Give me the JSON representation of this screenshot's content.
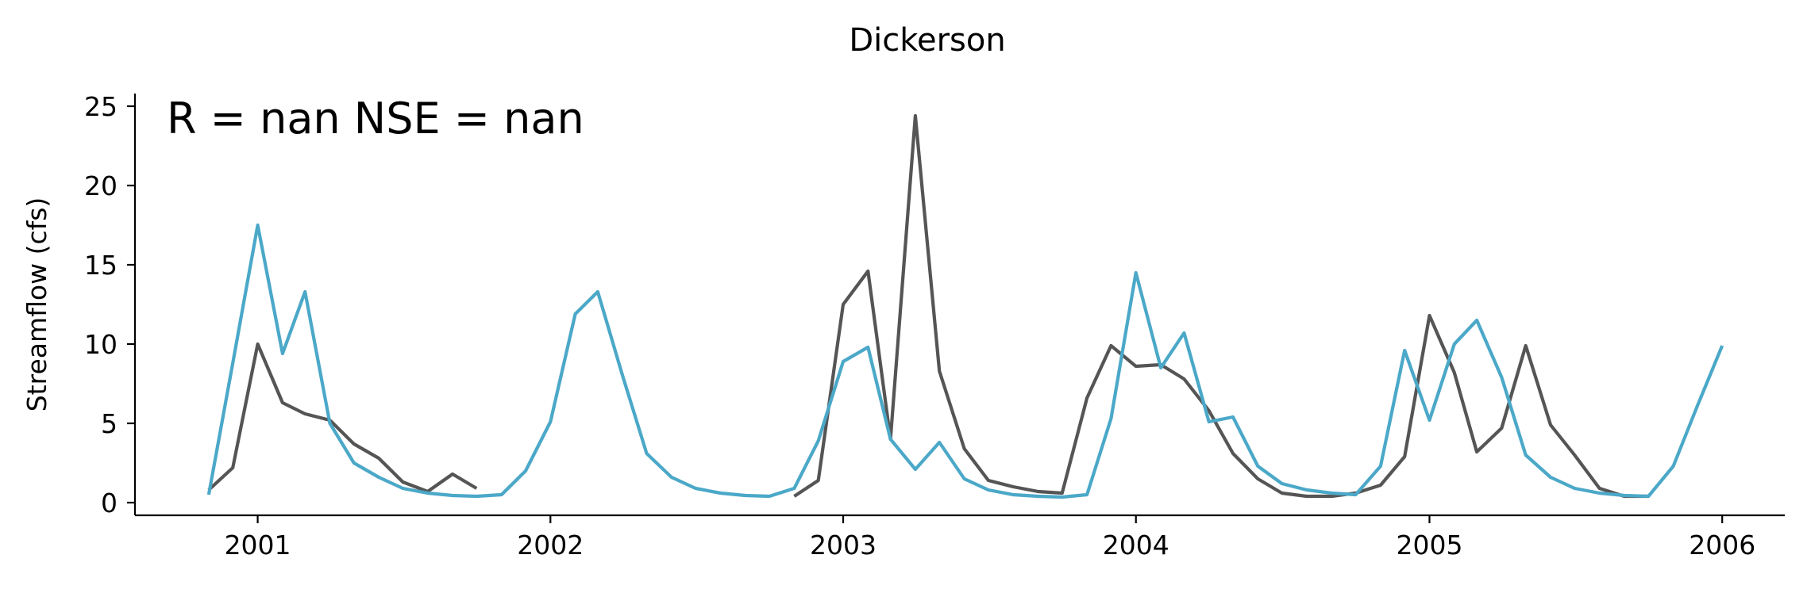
{
  "chart_data": {
    "type": "line",
    "title": "Dickerson",
    "xlabel": "",
    "ylabel": "Streamflow (cfs)",
    "annotation": "R = nan  NSE = nan",
    "xlim": [
      "2000-08-01",
      "2006-03-20"
    ],
    "ylim": [
      -0.8,
      25.8
    ],
    "xticks": [
      {
        "date": "2001-01-01",
        "label": "2001"
      },
      {
        "date": "2002-01-01",
        "label": "2002"
      },
      {
        "date": "2003-01-01",
        "label": "2003"
      },
      {
        "date": "2004-01-01",
        "label": "2004"
      },
      {
        "date": "2005-01-01",
        "label": "2005"
      },
      {
        "date": "2006-01-01",
        "label": "2006"
      }
    ],
    "yticks": [
      0,
      5,
      10,
      15,
      20,
      25
    ],
    "grid": false,
    "legend": "none",
    "series": [
      {
        "color": "#555555",
        "segments": [
          [
            [
              "2000-11-01",
              0.8
            ],
            [
              "2000-12-01",
              2.2
            ],
            [
              "2001-01-01",
              10.0
            ],
            [
              "2001-02-01",
              6.3
            ],
            [
              "2001-03-01",
              5.6
            ],
            [
              "2001-04-01",
              5.2
            ],
            [
              "2001-05-01",
              3.7
            ],
            [
              "2001-06-01",
              2.8
            ],
            [
              "2001-07-01",
              1.3
            ],
            [
              "2001-08-01",
              0.7
            ],
            [
              "2001-09-01",
              1.8
            ],
            [
              "2001-10-01",
              0.9
            ]
          ],
          [
            [
              "2002-11-01",
              0.4
            ],
            [
              "2002-12-01",
              1.4
            ],
            [
              "2003-01-01",
              12.5
            ],
            [
              "2003-02-01",
              14.6
            ],
            [
              "2003-03-01",
              4.0
            ],
            [
              "2003-04-01",
              24.4
            ],
            [
              "2003-05-01",
              8.3
            ],
            [
              "2003-06-01",
              3.4
            ],
            [
              "2003-07-01",
              1.4
            ],
            [
              "2003-08-01",
              1.0
            ],
            [
              "2003-09-01",
              0.7
            ],
            [
              "2003-10-01",
              0.6
            ],
            [
              "2003-11-01",
              6.6
            ],
            [
              "2003-12-01",
              9.9
            ],
            [
              "2004-01-01",
              8.6
            ],
            [
              "2004-02-01",
              8.7
            ],
            [
              "2004-03-01",
              7.8
            ],
            [
              "2004-04-01",
              5.8
            ],
            [
              "2004-05-01",
              3.1
            ],
            [
              "2004-06-01",
              1.5
            ],
            [
              "2004-07-01",
              0.6
            ],
            [
              "2004-08-01",
              0.4
            ],
            [
              "2004-09-01",
              0.4
            ],
            [
              "2004-10-01",
              0.6
            ],
            [
              "2004-11-01",
              1.1
            ],
            [
              "2004-12-01",
              2.9
            ],
            [
              "2005-01-01",
              11.8
            ],
            [
              "2005-02-01",
              8.2
            ],
            [
              "2005-03-01",
              3.2
            ],
            [
              "2005-04-01",
              4.7
            ],
            [
              "2005-05-01",
              9.9
            ],
            [
              "2005-06-01",
              4.9
            ],
            [
              "2005-07-01",
              3.0
            ],
            [
              "2005-08-01",
              0.9
            ],
            [
              "2005-09-01",
              0.4
            ],
            [
              "2005-10-01",
              0.4
            ]
          ]
        ]
      },
      {
        "color": "#4ba8c8",
        "segments": [
          [
            [
              "2000-11-01",
              0.5
            ],
            [
              "2000-12-01",
              8.8
            ],
            [
              "2001-01-01",
              17.5
            ],
            [
              "2001-02-01",
              9.4
            ],
            [
              "2001-03-01",
              13.3
            ],
            [
              "2001-04-01",
              5.0
            ],
            [
              "2001-05-01",
              2.5
            ],
            [
              "2001-06-01",
              1.6
            ],
            [
              "2001-07-01",
              0.9
            ],
            [
              "2001-08-01",
              0.6
            ],
            [
              "2001-09-01",
              0.45
            ],
            [
              "2001-10-01",
              0.4
            ],
            [
              "2001-11-01",
              0.5
            ],
            [
              "2001-12-01",
              2.0
            ],
            [
              "2002-01-01",
              5.1
            ],
            [
              "2002-02-01",
              11.9
            ],
            [
              "2002-03-01",
              13.3
            ],
            [
              "2002-04-01",
              8.0
            ],
            [
              "2002-05-01",
              3.1
            ],
            [
              "2002-06-01",
              1.6
            ],
            [
              "2002-07-01",
              0.9
            ],
            [
              "2002-08-01",
              0.6
            ],
            [
              "2002-09-01",
              0.45
            ],
            [
              "2002-10-01",
              0.4
            ],
            [
              "2002-11-01",
              0.9
            ],
            [
              "2002-12-01",
              3.9
            ],
            [
              "2003-01-01",
              8.9
            ],
            [
              "2003-02-01",
              9.8
            ],
            [
              "2003-03-01",
              4.0
            ],
            [
              "2003-04-01",
              2.1
            ],
            [
              "2003-05-01",
              3.8
            ],
            [
              "2003-06-01",
              1.5
            ],
            [
              "2003-07-01",
              0.8
            ],
            [
              "2003-08-01",
              0.5
            ],
            [
              "2003-09-01",
              0.4
            ],
            [
              "2003-10-01",
              0.35
            ],
            [
              "2003-11-01",
              0.5
            ],
            [
              "2003-12-01",
              5.3
            ],
            [
              "2004-01-01",
              14.5
            ],
            [
              "2004-02-01",
              8.5
            ],
            [
              "2004-03-01",
              10.7
            ],
            [
              "2004-04-01",
              5.1
            ],
            [
              "2004-05-01",
              5.4
            ],
            [
              "2004-06-01",
              2.3
            ],
            [
              "2004-07-01",
              1.2
            ],
            [
              "2004-08-01",
              0.8
            ],
            [
              "2004-09-01",
              0.6
            ],
            [
              "2004-10-01",
              0.5
            ],
            [
              "2004-11-01",
              2.3
            ],
            [
              "2004-12-01",
              9.6
            ],
            [
              "2005-01-01",
              5.2
            ],
            [
              "2005-02-01",
              10.0
            ],
            [
              "2005-03-01",
              11.5
            ],
            [
              "2005-04-01",
              7.9
            ],
            [
              "2005-05-01",
              3.0
            ],
            [
              "2005-06-01",
              1.6
            ],
            [
              "2005-07-01",
              0.9
            ],
            [
              "2005-08-01",
              0.6
            ],
            [
              "2005-09-01",
              0.45
            ],
            [
              "2005-10-01",
              0.4
            ],
            [
              "2005-11-01",
              2.3
            ],
            [
              "2005-12-01",
              6.1
            ],
            [
              "2006-01-01",
              9.9
            ]
          ]
        ]
      }
    ]
  }
}
